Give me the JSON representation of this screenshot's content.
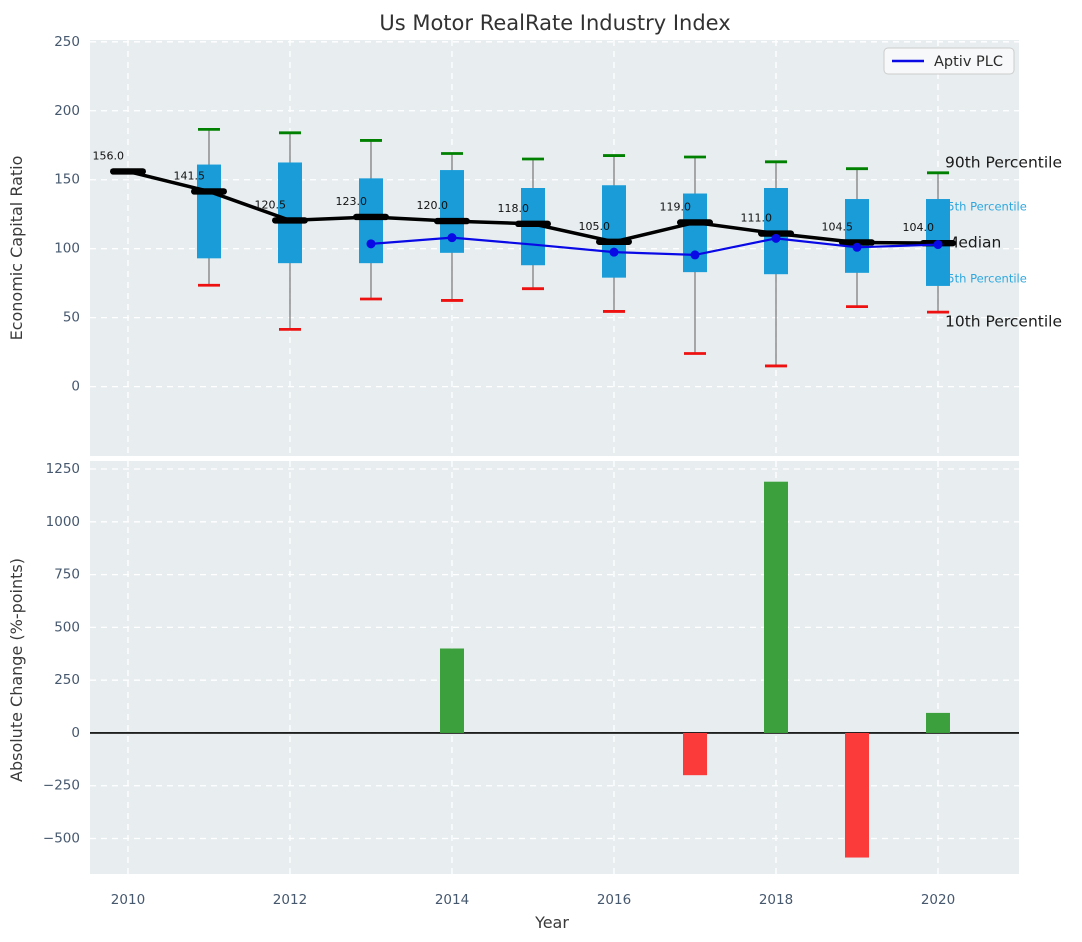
{
  "figure": {
    "title": "Us Motor RealRate Industry Index",
    "axes_background": "#e8eef0",
    "grid_color": "#ffffff",
    "tick_color": "#46586e",
    "label_color": "#3a3a3a"
  },
  "chart_data": [
    {
      "type": "boxplot+line",
      "title": "Us Motor RealRate Industry Index",
      "ylabel": "Economic Capital Ratio",
      "ylim": [
        -50.3,
        251.3
      ],
      "xlim": [
        2009.531,
        2021.0
      ],
      "yticks": [
        0,
        50,
        100,
        150,
        200,
        250
      ],
      "grid": true,
      "categories": [
        2010,
        2011,
        2012,
        2013,
        2014,
        2015,
        2016,
        2017,
        2018,
        2019,
        2020
      ],
      "box_series": {
        "p90": [
          null,
          186.5,
          184.0,
          178.5,
          169.0,
          165.0,
          167.5,
          166.5,
          163.0,
          158.0,
          155.0
        ],
        "p75": [
          null,
          161.0,
          162.5,
          151.0,
          157.0,
          144.0,
          146.0,
          140.0,
          144.0,
          136.0,
          136.0
        ],
        "median": [
          156.0,
          141.5,
          120.5,
          123.0,
          120.0,
          118.0,
          105.0,
          119.0,
          111.0,
          104.5,
          104.0
        ],
        "p25": [
          null,
          93.0,
          89.5,
          89.5,
          97.0,
          88.0,
          79.0,
          83.0,
          81.5,
          82.5,
          73.0
        ],
        "p10": [
          null,
          73.5,
          41.5,
          63.5,
          62.5,
          71.0,
          54.5,
          24.0,
          15.0,
          58.0,
          54.0
        ]
      },
      "median_labels": [
        "156.0",
        "141.5",
        "120.5",
        "123.0",
        "120.0",
        "118.0",
        "105.0",
        "119.0",
        "111.0",
        "104.5",
        "104.0"
      ],
      "series": [
        {
          "name": "Aptiv PLC",
          "x": [
            2013,
            2014,
            2015,
            2016,
            2017,
            2018,
            2019,
            2020
          ],
          "values": [
            103.5,
            108.0,
            103.0,
            97.5,
            95.5,
            107.5,
            101.0,
            103.0
          ],
          "marker_x": [
            2013,
            2014,
            2016,
            2017,
            2018,
            2019,
            2020
          ],
          "color": "#0909e6"
        }
      ],
      "legend": {
        "position": "upper right",
        "label": "Aptiv PLC"
      },
      "annotations": [
        {
          "text": "90th Percentile",
          "value": 162.0,
          "color": "#1a1a1a",
          "size": 15.5,
          "x_offset": 7
        },
        {
          "text": "75th Percentile",
          "value": 130.3,
          "color": "#2fa7de",
          "size": 11.5,
          "x_offset": 2
        },
        {
          "text": "Median",
          "value": 104.0,
          "color": "#1a1a1a",
          "size": 15.5,
          "x_offset": 7
        },
        {
          "text": "25th Percentile",
          "value": 78.2,
          "color": "#2fa7de",
          "size": 11.5,
          "x_offset": 2
        },
        {
          "text": "10th Percentile",
          "value": 47.0,
          "color": "#1a1a1a",
          "size": 15.5,
          "x_offset": 7
        }
      ],
      "colors": {
        "box": "#1a9cd8",
        "whisker": "#7f7f7f",
        "p90_cap": "#008000",
        "p10_cap": "#ee1111",
        "median": "#000000"
      }
    },
    {
      "type": "bar",
      "ylabel": "Absolute Change (%-points)",
      "xlabel": "Year",
      "ylim": [
        -668,
        1288
      ],
      "xlim": [
        2009.531,
        2021.0
      ],
      "yticks": [
        -500,
        -250,
        0,
        250,
        500,
        750,
        1000,
        1250
      ],
      "xticks": [
        2010,
        2012,
        2014,
        2016,
        2018,
        2020
      ],
      "grid": true,
      "categories": [
        2010,
        2011,
        2012,
        2013,
        2014,
        2015,
        2016,
        2017,
        2018,
        2019,
        2020
      ],
      "values": [
        null,
        0,
        0,
        0,
        400,
        0,
        0,
        -200,
        1190,
        -590,
        95
      ],
      "colors": {
        "positive": "#3ca03c",
        "negative": "#fb3a3a",
        "zero_line": "#000000"
      }
    }
  ]
}
